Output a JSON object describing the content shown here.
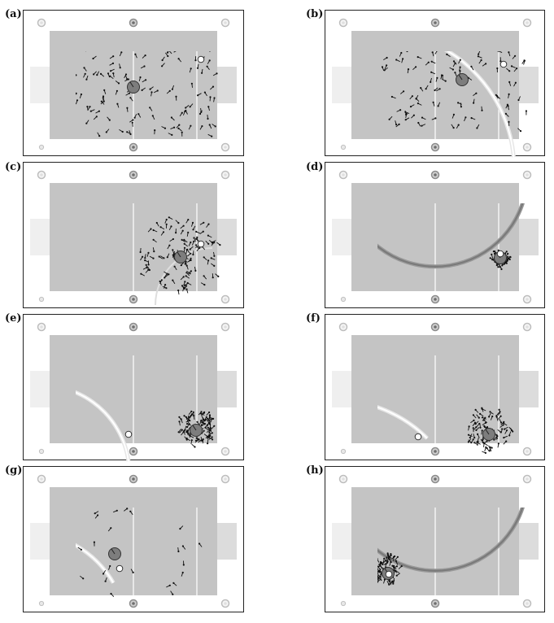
{
  "figure": {
    "panels": [
      {
        "id": "a",
        "label": "(a)",
        "arc": "none",
        "robot": "top-center",
        "ball": "top-right",
        "particles": "spread"
      },
      {
        "id": "b",
        "label": "(b)",
        "arc": "white-right",
        "robot": "top-center",
        "ball": "top-right",
        "particles": "spread-center"
      },
      {
        "id": "c",
        "label": "(c)",
        "arc": "faint-right",
        "robot": "lower-right",
        "ball": "right",
        "particles": "cluster-lower-right"
      },
      {
        "id": "d",
        "label": "(d)",
        "arc": "dark-bowl",
        "robot": "right",
        "ball": "right",
        "particles": "tight-right"
      },
      {
        "id": "e",
        "label": "(e)",
        "arc": "white-left",
        "robot": "right",
        "ball": "center",
        "particles": "cluster-right"
      },
      {
        "id": "f",
        "label": "(f)",
        "arc": "white-center",
        "robot": "right",
        "ball": "center-left",
        "particles": "cluster-right"
      },
      {
        "id": "g",
        "label": "(g)",
        "arc": "white-left-low",
        "robot": "center-left",
        "ball": "center-left",
        "particles": "sparse"
      },
      {
        "id": "h",
        "label": "(h)",
        "arc": "dark-bowl",
        "robot": "lower-left",
        "ball": "lower-left",
        "particles": "tight-left"
      }
    ],
    "colors": {
      "field": "#c4c4c4",
      "goal": "#dcdcdc",
      "goal_alt": "#efefef",
      "line": "#ffffff",
      "robot": "#7d7d7d",
      "arc_dark": "#7a7a7a",
      "particle": "#111111"
    }
  }
}
